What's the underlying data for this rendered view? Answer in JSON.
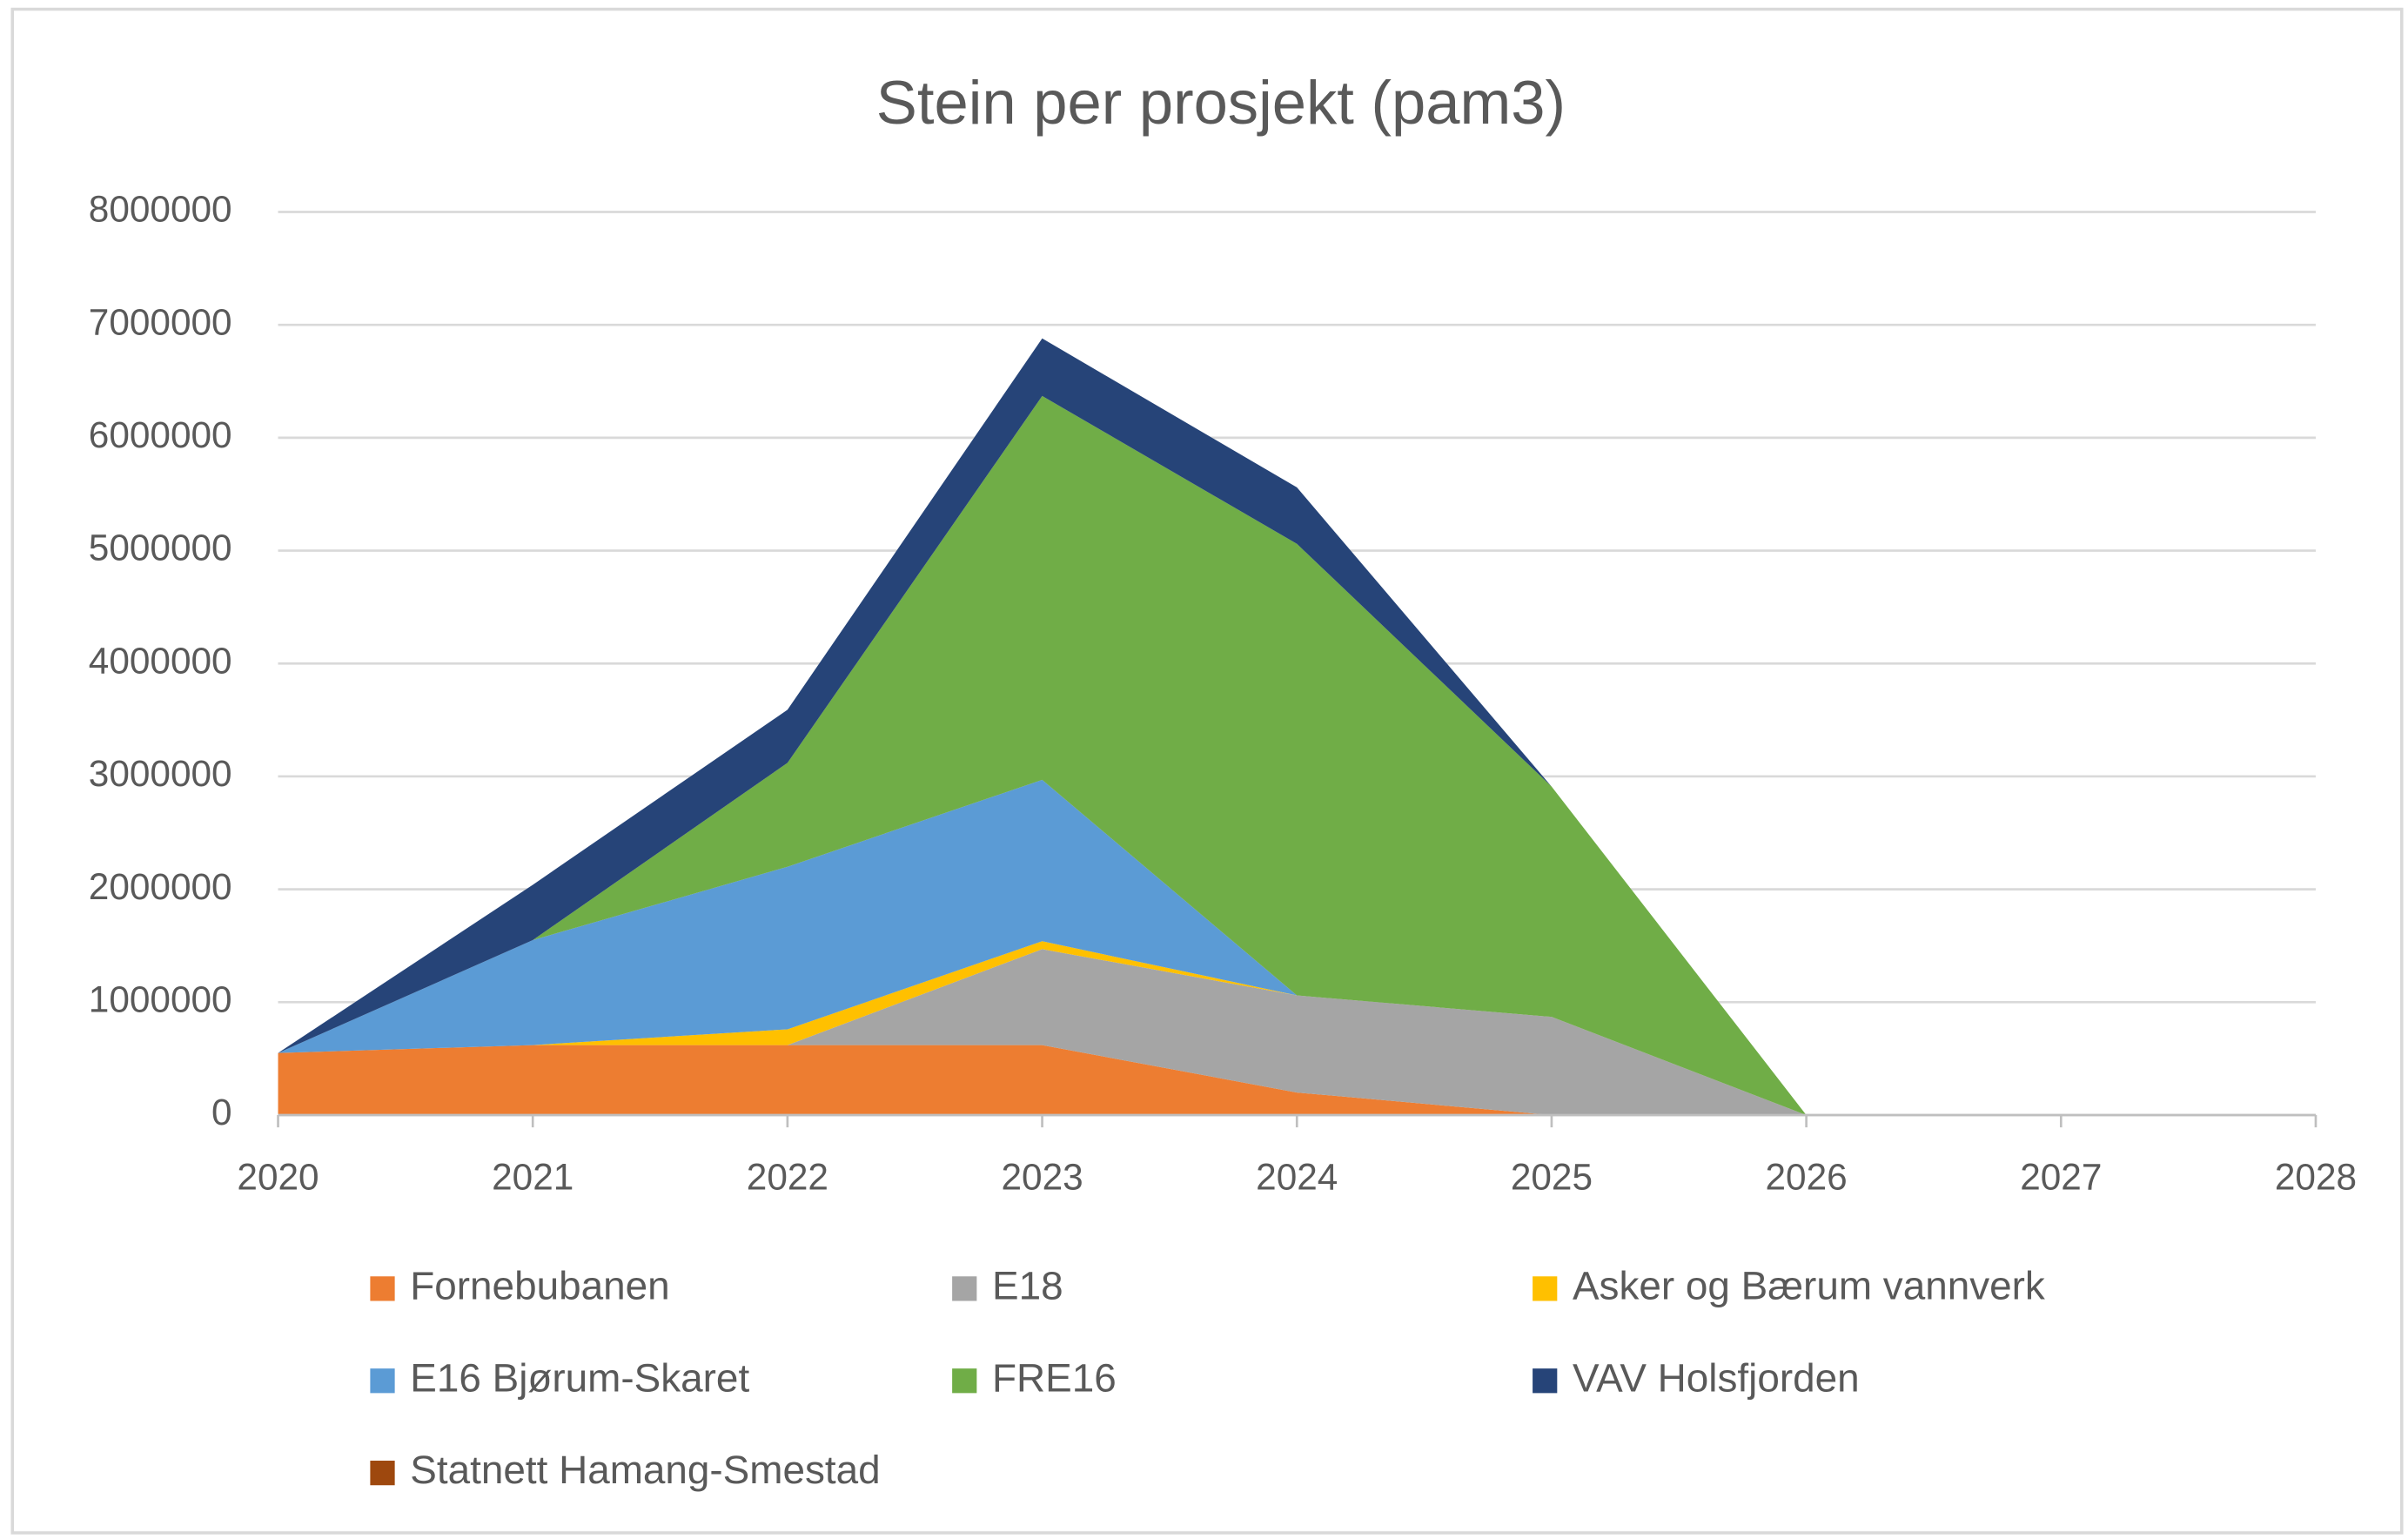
{
  "chart_data": {
    "type": "stacked_area",
    "title": "Stein per prosjekt (pam3)",
    "x": [
      2020,
      2021,
      2022,
      2023,
      2024,
      2025,
      2026
    ],
    "series": [
      {
        "name": "Fornebubanen",
        "color": "#ed7d31",
        "values": [
          550000,
          620000,
          620000,
          620000,
          200000,
          0,
          0
        ]
      },
      {
        "name": "E18",
        "color": "#a5a5a5",
        "values": [
          0,
          0,
          0,
          850000,
          860000,
          870000,
          0
        ]
      },
      {
        "name": "Asker og Bærum vannverk",
        "color": "#ffc000",
        "values": [
          0,
          0,
          140000,
          70000,
          0,
          0,
          0
        ]
      },
      {
        "name": "E16 Bjørum-Skaret",
        "color": "#5b9bd5",
        "values": [
          0,
          930000,
          1440000,
          1430000,
          0,
          0,
          0
        ]
      },
      {
        "name": "FRE16",
        "color": "#70ad47",
        "values": [
          0,
          0,
          920000,
          3400000,
          4000000,
          2040000,
          0
        ]
      },
      {
        "name": "VAV Holsfjorden",
        "color": "#264478",
        "values": [
          0,
          490000,
          470000,
          510000,
          500000,
          0,
          0
        ]
      },
      {
        "name": "Statnett Hamang-Smestad",
        "color": "#9e480e",
        "values": [
          0,
          0,
          0,
          0,
          0,
          0,
          0
        ]
      }
    ],
    "xlim": [
      2020,
      2028
    ],
    "xticks": [
      2020,
      2021,
      2022,
      2023,
      2024,
      2025,
      2026,
      2027,
      2028
    ],
    "ylim": [
      0,
      8000000
    ],
    "yticks": [
      0,
      1000000,
      2000000,
      3000000,
      4000000,
      5000000,
      6000000,
      7000000,
      8000000
    ],
    "grid": true,
    "legend": "bottom"
  }
}
